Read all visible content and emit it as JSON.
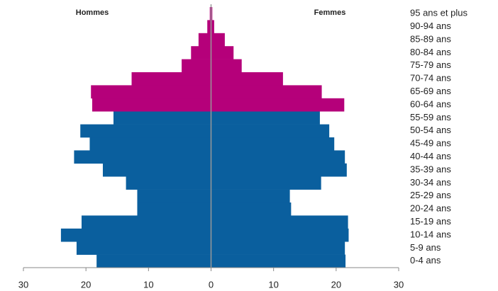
{
  "chart_data": {
    "type": "pyramid",
    "categories": [
      "0-4 ans",
      "5-9 ans",
      "10-14 ans",
      "15-19 ans",
      "20-24 ans",
      "25-29 ans",
      "30-34 ans",
      "35-39 ans",
      "40-44 ans",
      "45-49 ans",
      "50-54 ans",
      "55-59 ans",
      "60-64 ans",
      "65-69 ans",
      "70-74 ans",
      "75-79 ans",
      "80-84 ans",
      "85-89 ans",
      "90-94 ans",
      "95 ans et plus"
    ],
    "series": [
      {
        "name": "Hommes",
        "values": [
          -18.3,
          -21.5,
          -24,
          -20.7,
          -11.8,
          -11.8,
          -13.6,
          -17.3,
          -21.9,
          -19.4,
          -20.9,
          -15.6,
          -19,
          -19.2,
          -12.7,
          -4.7,
          -3.2,
          -2,
          -0.6,
          -0.2
        ]
      },
      {
        "name": "Femmes",
        "values": [
          21.5,
          21.4,
          22,
          21.9,
          12.8,
          12.6,
          17.6,
          21.7,
          21.4,
          19.7,
          18.9,
          17.4,
          21.3,
          17.7,
          11.5,
          4.9,
          3.6,
          2.2,
          0.5,
          0.2
        ]
      }
    ],
    "bar_colors": [
      "#0a5f9e",
      "#0a5f9e",
      "#0a5f9e",
      "#0a5f9e",
      "#0a5f9e",
      "#0a5f9e",
      "#0a5f9e",
      "#0a5f9e",
      "#0a5f9e",
      "#0a5f9e",
      "#0a5f9e",
      "#0a5f9e",
      "#b5007a",
      "#b5007a",
      "#b5007a",
      "#b5007a",
      "#b5007a",
      "#b5007a",
      "#b5007a",
      "#b5007a"
    ],
    "xlim": [
      -30,
      30
    ],
    "xticks": [
      {
        "value": -30,
        "label": "30"
      },
      {
        "value": -20,
        "label": "20"
      },
      {
        "value": -10,
        "label": "10"
      },
      0,
      10,
      20,
      30
    ]
  }
}
